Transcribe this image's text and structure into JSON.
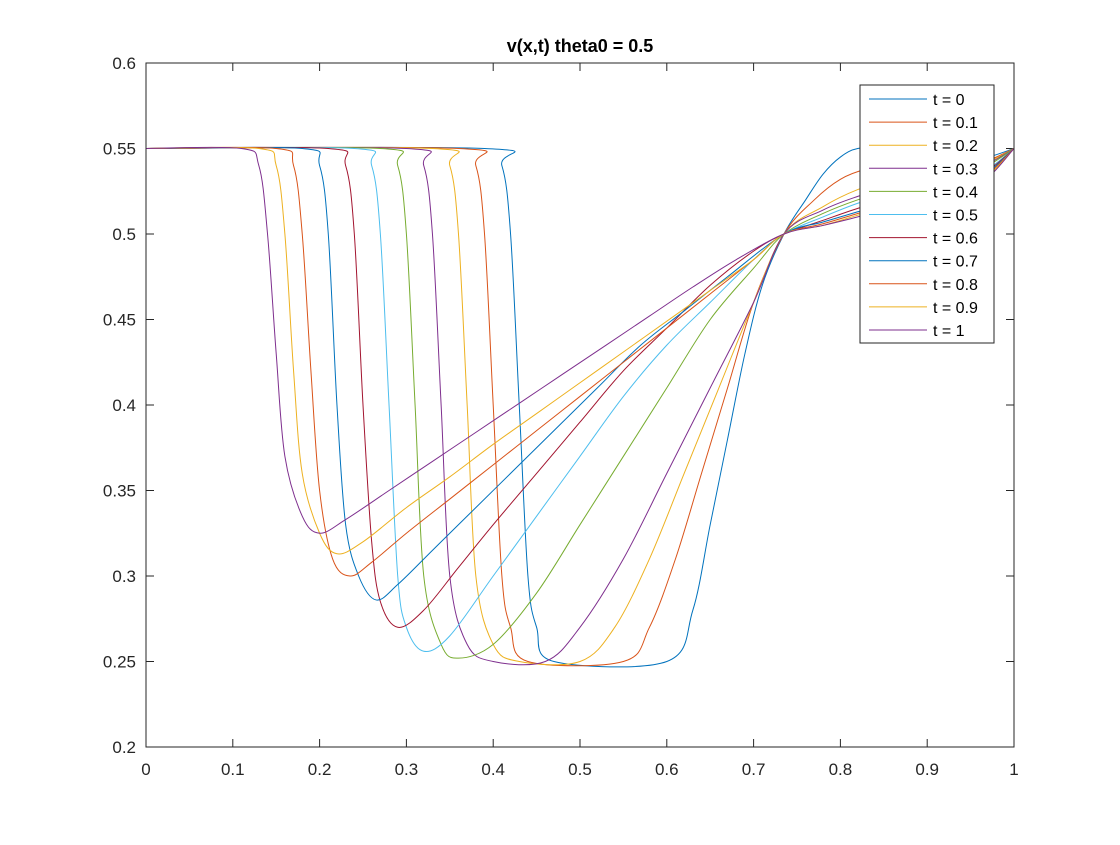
{
  "chart_data": {
    "type": "line",
    "title": "v(x,t) theta0 = 0.5",
    "xlabel": "",
    "ylabel": "",
    "xlim": [
      0,
      1
    ],
    "ylim": [
      0.2,
      0.6
    ],
    "xticks": [
      0,
      0.1,
      0.2,
      0.3,
      0.4,
      0.5,
      0.6,
      0.7,
      0.8,
      0.9,
      1
    ],
    "xtick_labels": [
      "0",
      "0.1",
      "0.2",
      "0.3",
      "0.4",
      "0.5",
      "0.6",
      "0.7",
      "0.8",
      "0.9",
      "1"
    ],
    "yticks": [
      0.2,
      0.25,
      0.3,
      0.35,
      0.4,
      0.45,
      0.5,
      0.55,
      0.6
    ],
    "ytick_labels": [
      "0.2",
      "0.25",
      "0.3",
      "0.35",
      "0.4",
      "0.45",
      "0.5",
      "0.55",
      "0.6"
    ],
    "grid": false,
    "legend_position": "top-right",
    "series": [
      {
        "name": "t = 0",
        "color": "#0072BD",
        "x": [
          0,
          0.39,
          0.41,
          0.42,
          0.43,
          0.44,
          0.45,
          0.47,
          0.6,
          0.63,
          0.65,
          0.67,
          0.69,
          0.71,
          0.735,
          0.76,
          0.78,
          0.8,
          0.82,
          0.85,
          0.88,
          0.91,
          0.94,
          0.97,
          1
        ],
        "y": [
          0.55,
          0.55,
          0.54,
          0.5,
          0.4,
          0.3,
          0.27,
          0.25,
          0.25,
          0.28,
          0.33,
          0.38,
          0.43,
          0.47,
          0.5,
          0.52,
          0.535,
          0.545,
          0.55,
          0.55,
          0.548,
          0.545,
          0.543,
          0.545,
          0.55
        ]
      },
      {
        "name": "t = 0.1",
        "color": "#D95319",
        "x": [
          0,
          0.36,
          0.38,
          0.39,
          0.4,
          0.41,
          0.42,
          0.44,
          0.55,
          0.58,
          0.61,
          0.64,
          0.67,
          0.7,
          0.735,
          0.77,
          0.8,
          0.83,
          0.86,
          0.9,
          0.94,
          0.97,
          1
        ],
        "y": [
          0.55,
          0.55,
          0.54,
          0.5,
          0.4,
          0.3,
          0.27,
          0.25,
          0.25,
          0.27,
          0.31,
          0.36,
          0.41,
          0.46,
          0.5,
          0.52,
          0.532,
          0.538,
          0.54,
          0.54,
          0.54,
          0.543,
          0.55
        ]
      },
      {
        "name": "t = 0.2",
        "color": "#EDB120",
        "x": [
          0,
          0.33,
          0.35,
          0.36,
          0.37,
          0.38,
          0.4,
          0.43,
          0.5,
          0.54,
          0.58,
          0.62,
          0.66,
          0.7,
          0.735,
          0.78,
          0.82,
          0.86,
          0.9,
          0.94,
          0.97,
          1
        ],
        "y": [
          0.55,
          0.55,
          0.54,
          0.5,
          0.4,
          0.3,
          0.26,
          0.25,
          0.25,
          0.27,
          0.31,
          0.36,
          0.41,
          0.46,
          0.5,
          0.516,
          0.526,
          0.532,
          0.535,
          0.537,
          0.542,
          0.55
        ]
      },
      {
        "name": "t = 0.3",
        "color": "#7E2F8E",
        "x": [
          0,
          0.3,
          0.32,
          0.33,
          0.34,
          0.35,
          0.37,
          0.4,
          0.46,
          0.5,
          0.55,
          0.6,
          0.65,
          0.7,
          0.735,
          0.78,
          0.82,
          0.86,
          0.9,
          0.94,
          0.97,
          1
        ],
        "y": [
          0.55,
          0.55,
          0.54,
          0.5,
          0.4,
          0.3,
          0.26,
          0.25,
          0.25,
          0.27,
          0.31,
          0.36,
          0.41,
          0.46,
          0.5,
          0.514,
          0.522,
          0.528,
          0.532,
          0.535,
          0.541,
          0.55
        ]
      },
      {
        "name": "t = 0.4",
        "color": "#77AC30",
        "x": [
          0,
          0.27,
          0.29,
          0.3,
          0.31,
          0.32,
          0.34,
          0.36,
          0.4,
          0.45,
          0.5,
          0.55,
          0.6,
          0.65,
          0.7,
          0.735,
          0.78,
          0.82,
          0.86,
          0.9,
          0.94,
          0.97,
          1
        ],
        "y": [
          0.55,
          0.55,
          0.54,
          0.5,
          0.4,
          0.3,
          0.26,
          0.252,
          0.26,
          0.29,
          0.33,
          0.37,
          0.41,
          0.45,
          0.48,
          0.5,
          0.512,
          0.52,
          0.526,
          0.53,
          0.534,
          0.54,
          0.55
        ]
      },
      {
        "name": "t = 0.5",
        "color": "#4DBEEE",
        "x": [
          0,
          0.24,
          0.26,
          0.27,
          0.28,
          0.29,
          0.3,
          0.32,
          0.35,
          0.4,
          0.45,
          0.5,
          0.55,
          0.6,
          0.65,
          0.7,
          0.735,
          0.78,
          0.82,
          0.86,
          0.9,
          0.94,
          0.97,
          1
        ],
        "y": [
          0.55,
          0.55,
          0.54,
          0.5,
          0.4,
          0.3,
          0.27,
          0.256,
          0.265,
          0.3,
          0.335,
          0.37,
          0.405,
          0.435,
          0.46,
          0.485,
          0.5,
          0.51,
          0.518,
          0.524,
          0.528,
          0.532,
          0.538,
          0.55
        ]
      },
      {
        "name": "t = 0.6",
        "color": "#A2142F",
        "x": [
          0,
          0.21,
          0.23,
          0.24,
          0.25,
          0.26,
          0.27,
          0.29,
          0.32,
          0.36,
          0.4,
          0.45,
          0.5,
          0.55,
          0.6,
          0.65,
          0.7,
          0.735,
          0.78,
          0.82,
          0.86,
          0.9,
          0.94,
          0.97,
          1
        ],
        "y": [
          0.55,
          0.55,
          0.54,
          0.5,
          0.4,
          0.32,
          0.285,
          0.27,
          0.28,
          0.305,
          0.33,
          0.36,
          0.39,
          0.42,
          0.445,
          0.47,
          0.49,
          0.5,
          0.508,
          0.515,
          0.521,
          0.526,
          0.53,
          0.537,
          0.55
        ]
      },
      {
        "name": "t = 0.7",
        "color": "#0072BD",
        "x": [
          0,
          0.18,
          0.2,
          0.21,
          0.22,
          0.23,
          0.245,
          0.265,
          0.29,
          0.33,
          0.37,
          0.42,
          0.47,
          0.52,
          0.57,
          0.62,
          0.67,
          0.735,
          0.78,
          0.82,
          0.86,
          0.9,
          0.94,
          0.97,
          1
        ],
        "y": [
          0.55,
          0.55,
          0.54,
          0.5,
          0.4,
          0.33,
          0.3,
          0.286,
          0.295,
          0.315,
          0.335,
          0.36,
          0.385,
          0.41,
          0.435,
          0.455,
          0.475,
          0.5,
          0.507,
          0.513,
          0.519,
          0.524,
          0.529,
          0.536,
          0.55
        ]
      },
      {
        "name": "t = 0.8",
        "color": "#D95319",
        "x": [
          0,
          0.15,
          0.17,
          0.18,
          0.19,
          0.2,
          0.215,
          0.235,
          0.26,
          0.3,
          0.35,
          0.4,
          0.45,
          0.5,
          0.55,
          0.6,
          0.65,
          0.7,
          0.735,
          0.78,
          0.82,
          0.86,
          0.9,
          0.94,
          0.97,
          1
        ],
        "y": [
          0.55,
          0.55,
          0.54,
          0.5,
          0.42,
          0.35,
          0.31,
          0.3,
          0.308,
          0.325,
          0.345,
          0.365,
          0.385,
          0.405,
          0.425,
          0.445,
          0.465,
          0.485,
          0.5,
          0.506,
          0.512,
          0.518,
          0.523,
          0.528,
          0.535,
          0.55
        ]
      },
      {
        "name": "t = 0.9",
        "color": "#EDB120",
        "x": [
          0,
          0.13,
          0.15,
          0.16,
          0.17,
          0.18,
          0.2,
          0.22,
          0.25,
          0.3,
          0.35,
          0.4,
          0.45,
          0.5,
          0.55,
          0.6,
          0.65,
          0.7,
          0.735,
          0.78,
          0.82,
          0.86,
          0.9,
          0.94,
          0.97,
          1
        ],
        "y": [
          0.55,
          0.55,
          0.54,
          0.5,
          0.42,
          0.36,
          0.325,
          0.313,
          0.32,
          0.34,
          0.358,
          0.377,
          0.395,
          0.413,
          0.431,
          0.449,
          0.467,
          0.485,
          0.5,
          0.505,
          0.511,
          0.517,
          0.522,
          0.527,
          0.534,
          0.55
        ]
      },
      {
        "name": "t = 1",
        "color": "#7E2F8E",
        "x": [
          0,
          0.11,
          0.13,
          0.14,
          0.15,
          0.16,
          0.18,
          0.2,
          0.23,
          0.28,
          0.33,
          0.38,
          0.43,
          0.48,
          0.53,
          0.58,
          0.63,
          0.68,
          0.735,
          0.78,
          0.82,
          0.86,
          0.9,
          0.94,
          0.97,
          1
        ],
        "y": [
          0.55,
          0.55,
          0.54,
          0.5,
          0.43,
          0.37,
          0.335,
          0.325,
          0.333,
          0.35,
          0.367,
          0.384,
          0.401,
          0.418,
          0.435,
          0.452,
          0.469,
          0.485,
          0.5,
          0.505,
          0.51,
          0.516,
          0.521,
          0.526,
          0.533,
          0.55
        ]
      }
    ]
  }
}
